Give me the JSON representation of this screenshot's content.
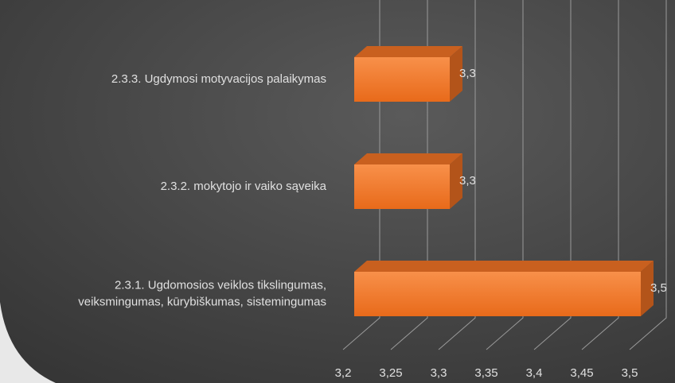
{
  "chart_data": {
    "type": "bar3d_horizontal",
    "categories": [
      [
        "2.3.3. Ugdymosi motyvacijos palaikymas"
      ],
      [
        "2.3.2. mokytojo ir vaiko sąveika"
      ],
      [
        "2.3.1. Ugdomosios veiklos tikslingumas,",
        "veiksmingumas, kūrybiškumas, sistemingumas"
      ]
    ],
    "values": [
      3.3,
      3.3,
      3.5
    ],
    "value_labels": [
      "3,3",
      "3,3",
      "3,5"
    ],
    "color": "#f07c2c",
    "xlim": [
      3.2,
      3.5
    ],
    "xticks": [
      {
        "value": 3.2,
        "label": "3,2"
      },
      {
        "value": 3.25,
        "label": "3,25"
      },
      {
        "value": 3.3,
        "label": "3,3"
      },
      {
        "value": 3.35,
        "label": "3,35"
      },
      {
        "value": 3.4,
        "label": "3,4"
      },
      {
        "value": 3.45,
        "label": "3,45"
      },
      {
        "value": 3.5,
        "label": "3,5"
      }
    ],
    "grid": true
  }
}
